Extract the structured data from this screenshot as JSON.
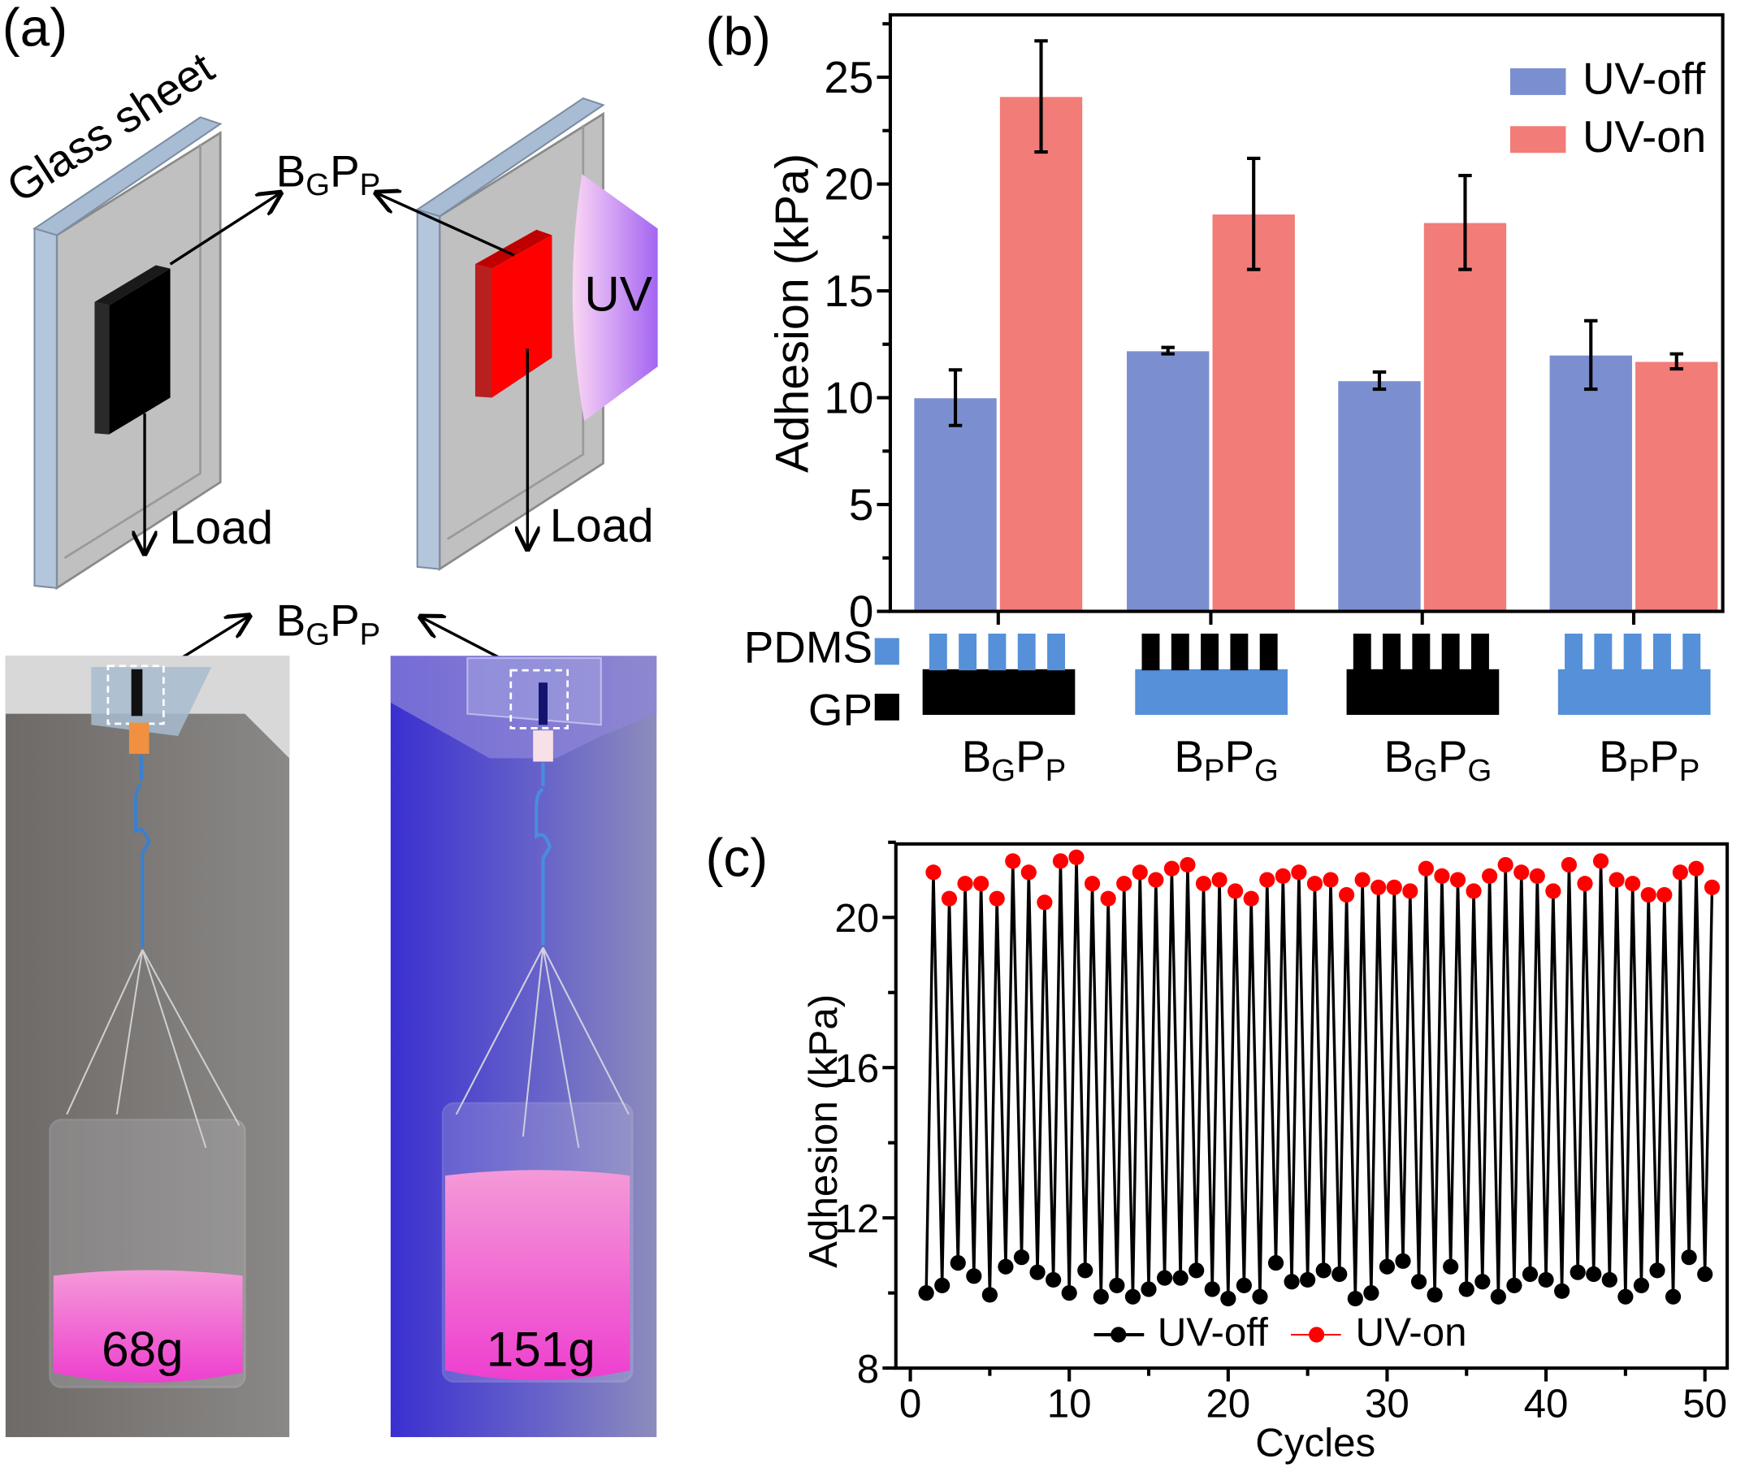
{
  "panel_a": {
    "panel_label": "(a)",
    "glass_label": "Glass sheet",
    "sample_label": [
      {
        "t": "B"
      },
      {
        "t": "G",
        "sub": true
      },
      {
        "t": "P"
      },
      {
        "t": "P",
        "sub": true
      }
    ],
    "load_label": "Load",
    "uv_label": "UV",
    "photo_left_weight": "68g",
    "photo_right_weight": "151g",
    "colors": {
      "uv_off_block": "#000000",
      "uv_on_block": "#ff0000",
      "glass_edge": "#b0c4dc",
      "glass_face": "#c0c0c0",
      "liquid": "#f060d0"
    }
  },
  "chart_data": [
    {
      "type": "bar",
      "panel_label": "(b)",
      "ylabel": "Adhesion (kPa)",
      "xlabel": "",
      "ylim": [
        0,
        27.5
      ],
      "yticks": [
        "0",
        "5",
        "10",
        "15",
        "20",
        "25"
      ],
      "legend_position": "top-right",
      "categories": [
        {
          "name": "BGPP",
          "parts": [
            {
              "t": "B"
            },
            {
              "t": "G",
              "sub": true
            },
            {
              "t": "P"
            },
            {
              "t": "P",
              "sub": true
            }
          ],
          "base_color": "#000000",
          "pillar_color": "#5590d8"
        },
        {
          "name": "BPPG",
          "parts": [
            {
              "t": "B"
            },
            {
              "t": "P",
              "sub": true
            },
            {
              "t": "P"
            },
            {
              "t": "G",
              "sub": true
            }
          ],
          "base_color": "#5590d8",
          "pillar_color": "#000000"
        },
        {
          "name": "BGPG",
          "parts": [
            {
              "t": "B"
            },
            {
              "t": "G",
              "sub": true
            },
            {
              "t": "P"
            },
            {
              "t": "G",
              "sub": true
            }
          ],
          "base_color": "#000000",
          "pillar_color": "#000000"
        },
        {
          "name": "BPPP",
          "parts": [
            {
              "t": "B"
            },
            {
              "t": "P",
              "sub": true
            },
            {
              "t": "P"
            },
            {
              "t": "P",
              "sub": true
            }
          ],
          "base_color": "#5590d8",
          "pillar_color": "#5590d8"
        }
      ],
      "series": [
        {
          "name": "UV-off",
          "color": "#7b8fd0",
          "values": [
            10.0,
            12.2,
            10.8,
            12.0
          ],
          "errors": [
            1.3,
            0.15,
            0.4,
            1.6
          ]
        },
        {
          "name": "UV-on",
          "color": "#f27c78",
          "values": [
            24.1,
            18.6,
            18.2,
            11.7
          ],
          "errors": [
            2.6,
            2.6,
            2.2,
            0.35
          ]
        }
      ],
      "material_legend": [
        {
          "label": "PDMS",
          "color": "#5590d8"
        },
        {
          "label": "GP",
          "color": "#000000"
        }
      ]
    },
    {
      "type": "line",
      "panel_label": "(c)",
      "xlabel": "Cycles",
      "ylabel": "Adhesion (kPa)",
      "xlim": [
        0,
        50.5
      ],
      "ylim": [
        8,
        22
      ],
      "xticks": [
        "0",
        "10",
        "20",
        "30",
        "40",
        "50"
      ],
      "yticks": [
        "8",
        "12",
        "16",
        "20"
      ],
      "legend_position": "bottom-center",
      "series": [
        {
          "name": "UV-off",
          "color": "#000000",
          "values": [
            10.0,
            10.2,
            10.8,
            10.45,
            9.95,
            10.7,
            10.95,
            10.55,
            10.35,
            10.0,
            10.6,
            9.9,
            10.2,
            9.9,
            10.1,
            10.4,
            10.4,
            10.6,
            10.1,
            9.85,
            10.2,
            9.9,
            10.8,
            10.3,
            10.35,
            10.6,
            10.5,
            9.85,
            10.0,
            10.7,
            10.85,
            10.3,
            9.95,
            10.7,
            10.1,
            10.3,
            9.9,
            10.2,
            10.5,
            10.35,
            10.05,
            10.55,
            10.5,
            10.35,
            9.9,
            10.2,
            10.6,
            9.9,
            10.95,
            10.5
          ]
        },
        {
          "name": "UV-on",
          "color": "#ff0000",
          "values": [
            21.2,
            20.5,
            20.9,
            20.9,
            20.5,
            21.5,
            21.2,
            20.4,
            21.5,
            21.6,
            20.9,
            20.5,
            20.9,
            21.2,
            21.0,
            21.3,
            21.4,
            20.9,
            21.0,
            20.7,
            20.5,
            21.0,
            21.1,
            21.2,
            20.9,
            21.0,
            20.6,
            21.0,
            20.8,
            20.8,
            20.7,
            21.3,
            21.1,
            21.0,
            20.7,
            21.1,
            21.4,
            21.2,
            21.1,
            20.7,
            21.4,
            20.9,
            21.5,
            21.0,
            20.9,
            20.6,
            20.6,
            21.2,
            21.3,
            20.8
          ]
        }
      ]
    }
  ]
}
